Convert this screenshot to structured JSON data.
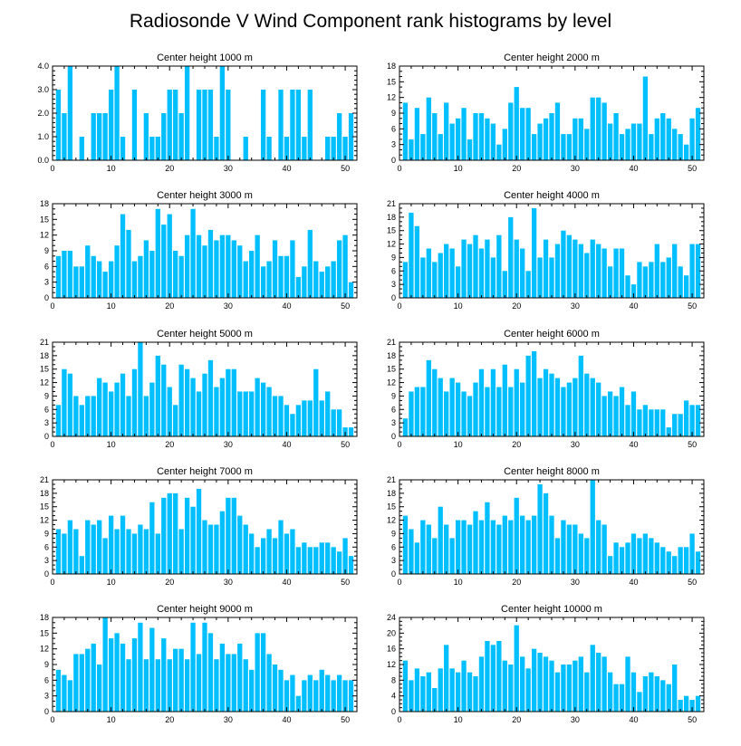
{
  "chart_data": {
    "title": "Radiosonde V Wind Component rank histograms by level",
    "bar_color": "#00bfff",
    "x_ticks": [
      "0",
      "10",
      "20",
      "30",
      "40",
      "50"
    ],
    "panels": [
      {
        "type": "bar",
        "title": "Center height 1000 m",
        "y_ticks": [
          "0.0",
          "1.0",
          "2.0",
          "3.0",
          "4.0"
        ],
        "ylim": [
          0,
          4
        ],
        "xlim": [
          0,
          52
        ],
        "x": [
          1,
          2,
          3,
          4,
          5,
          6,
          7,
          8,
          9,
          10,
          11,
          12,
          13,
          14,
          15,
          16,
          17,
          18,
          19,
          20,
          21,
          22,
          23,
          24,
          25,
          26,
          27,
          28,
          29,
          30,
          31,
          32,
          33,
          34,
          35,
          36,
          37,
          38,
          39,
          40,
          41,
          42,
          43,
          44,
          45,
          46,
          47,
          48,
          49,
          50,
          51
        ],
        "values": [
          3,
          2,
          4,
          0,
          1,
          0,
          2,
          2,
          2,
          3,
          4,
          1,
          0,
          3,
          0,
          2,
          1,
          1,
          2,
          3,
          3,
          2,
          4,
          0,
          3,
          3,
          3,
          1,
          4,
          3,
          0,
          0,
          1,
          0,
          0,
          3,
          1,
          0,
          3,
          1,
          3,
          3,
          1,
          3,
          0,
          0,
          1,
          1,
          2,
          1,
          2
        ]
      },
      {
        "type": "bar",
        "title": "Center height 2000 m",
        "y_ticks": [
          "0",
          "3",
          "6",
          "9",
          "12",
          "15",
          "18"
        ],
        "ylim": [
          0,
          18
        ],
        "xlim": [
          0,
          52
        ],
        "x": [
          1,
          2,
          3,
          4,
          5,
          6,
          7,
          8,
          9,
          10,
          11,
          12,
          13,
          14,
          15,
          16,
          17,
          18,
          19,
          20,
          21,
          22,
          23,
          24,
          25,
          26,
          27,
          28,
          29,
          30,
          31,
          32,
          33,
          34,
          35,
          36,
          37,
          38,
          39,
          40,
          41,
          42,
          43,
          44,
          45,
          46,
          47,
          48,
          49,
          50,
          51
        ],
        "values": [
          11,
          4,
          10,
          5,
          12,
          9,
          5,
          11,
          7,
          8,
          10,
          4,
          9,
          9,
          8,
          7,
          3,
          6,
          11,
          14,
          10,
          10,
          5,
          7,
          8,
          9,
          11,
          5,
          5,
          8,
          8,
          6,
          12,
          12,
          11,
          7,
          9,
          5,
          6,
          7,
          7,
          16,
          5,
          8,
          9,
          8,
          6,
          5,
          3,
          8,
          10
        ]
      },
      {
        "type": "bar",
        "title": "Center height 3000 m",
        "y_ticks": [
          "0",
          "3",
          "6",
          "9",
          "12",
          "15",
          "18"
        ],
        "ylim": [
          0,
          18
        ],
        "xlim": [
          0,
          52
        ],
        "x": [
          1,
          2,
          3,
          4,
          5,
          6,
          7,
          8,
          9,
          10,
          11,
          12,
          13,
          14,
          15,
          16,
          17,
          18,
          19,
          20,
          21,
          22,
          23,
          24,
          25,
          26,
          27,
          28,
          29,
          30,
          31,
          32,
          33,
          34,
          35,
          36,
          37,
          38,
          39,
          40,
          41,
          42,
          43,
          44,
          45,
          46,
          47,
          48,
          49,
          50,
          51
        ],
        "values": [
          8,
          9,
          9,
          6,
          6,
          10,
          8,
          7,
          5,
          7,
          10,
          16,
          13,
          7,
          8,
          11,
          9,
          17,
          14,
          16,
          9,
          8,
          12,
          17,
          12,
          10,
          13,
          11,
          12,
          12,
          11,
          10,
          7,
          9,
          12,
          6,
          7,
          11,
          8,
          8,
          11,
          4,
          6,
          13,
          7,
          5,
          6,
          7,
          11,
          12,
          3
        ]
      },
      {
        "type": "bar",
        "title": "Center height 4000 m",
        "y_ticks": [
          "0",
          "3",
          "6",
          "9",
          "12",
          "15",
          "18",
          "21"
        ],
        "ylim": [
          0,
          21
        ],
        "xlim": [
          0,
          52
        ],
        "x": [
          1,
          2,
          3,
          4,
          5,
          6,
          7,
          8,
          9,
          10,
          11,
          12,
          13,
          14,
          15,
          16,
          17,
          18,
          19,
          20,
          21,
          22,
          23,
          24,
          25,
          26,
          27,
          28,
          29,
          30,
          31,
          32,
          33,
          34,
          35,
          36,
          37,
          38,
          39,
          40,
          41,
          42,
          43,
          44,
          45,
          46,
          47,
          48,
          49,
          50,
          51
        ],
        "values": [
          8,
          19,
          16,
          9,
          11,
          8,
          10,
          12,
          11,
          7,
          13,
          12,
          14,
          11,
          13,
          9,
          14,
          6,
          18,
          13,
          11,
          6,
          20,
          9,
          13,
          9,
          12,
          15,
          14,
          13,
          12,
          10,
          13,
          12,
          11,
          7,
          11,
          11,
          5,
          3,
          8,
          7,
          8,
          12,
          8,
          9,
          12,
          7,
          5,
          12,
          12
        ]
      },
      {
        "type": "bar",
        "title": "Center height 5000 m",
        "y_ticks": [
          "0",
          "3",
          "6",
          "9",
          "12",
          "15",
          "18",
          "21"
        ],
        "ylim": [
          0,
          21
        ],
        "xlim": [
          0,
          52
        ],
        "x": [
          1,
          2,
          3,
          4,
          5,
          6,
          7,
          8,
          9,
          10,
          11,
          12,
          13,
          14,
          15,
          16,
          17,
          18,
          19,
          20,
          21,
          22,
          23,
          24,
          25,
          26,
          27,
          28,
          29,
          30,
          31,
          32,
          33,
          34,
          35,
          36,
          37,
          38,
          39,
          40,
          41,
          42,
          43,
          44,
          45,
          46,
          47,
          48,
          49,
          50,
          51
        ],
        "values": [
          7,
          15,
          14,
          9,
          7,
          9,
          9,
          13,
          12,
          10,
          12,
          14,
          9,
          15,
          21,
          9,
          12,
          18,
          16,
          11,
          7,
          16,
          15,
          13,
          10,
          14,
          17,
          11,
          13,
          15,
          15,
          10,
          10,
          10,
          13,
          12,
          11,
          9,
          9,
          7,
          5,
          7,
          8,
          8,
          15,
          8,
          10,
          6,
          6,
          2,
          2
        ]
      },
      {
        "type": "bar",
        "title": "Center height 6000 m",
        "y_ticks": [
          "0",
          "3",
          "6",
          "9",
          "12",
          "15",
          "18",
          "21"
        ],
        "ylim": [
          0,
          21
        ],
        "xlim": [
          0,
          52
        ],
        "x": [
          1,
          2,
          3,
          4,
          5,
          6,
          7,
          8,
          9,
          10,
          11,
          12,
          13,
          14,
          15,
          16,
          17,
          18,
          19,
          20,
          21,
          22,
          23,
          24,
          25,
          26,
          27,
          28,
          29,
          30,
          31,
          32,
          33,
          34,
          35,
          36,
          37,
          38,
          39,
          40,
          41,
          42,
          43,
          44,
          45,
          46,
          47,
          48,
          49,
          50,
          51
        ],
        "values": [
          4,
          10,
          11,
          11,
          17,
          15,
          13,
          10,
          13,
          12,
          10,
          9,
          12,
          15,
          11,
          15,
          11,
          16,
          11,
          15,
          12,
          18,
          19,
          13,
          15,
          14,
          13,
          11,
          12,
          13,
          18,
          14,
          13,
          12,
          9,
          10,
          9,
          11,
          7,
          10,
          6,
          7,
          6,
          6,
          6,
          2,
          5,
          5,
          8,
          7,
          7
        ]
      },
      {
        "type": "bar",
        "title": "Center height 7000 m",
        "y_ticks": [
          "0",
          "3",
          "6",
          "9",
          "12",
          "15",
          "18",
          "21"
        ],
        "ylim": [
          0,
          21
        ],
        "xlim": [
          0,
          52
        ],
        "x": [
          1,
          2,
          3,
          4,
          5,
          6,
          7,
          8,
          9,
          10,
          11,
          12,
          13,
          14,
          15,
          16,
          17,
          18,
          19,
          20,
          21,
          22,
          23,
          24,
          25,
          26,
          27,
          28,
          29,
          30,
          31,
          32,
          33,
          34,
          35,
          36,
          37,
          38,
          39,
          40,
          41,
          42,
          43,
          44,
          45,
          46,
          47,
          48,
          49,
          50,
          51
        ],
        "values": [
          10,
          9,
          12,
          10,
          4,
          12,
          11,
          12,
          8,
          13,
          10,
          13,
          10,
          9,
          11,
          10,
          16,
          9,
          17,
          18,
          18,
          10,
          17,
          15,
          19,
          12,
          11,
          11,
          14,
          17,
          17,
          13,
          11,
          9,
          6,
          8,
          10,
          8,
          12,
          9,
          10,
          6,
          7,
          6,
          6,
          7,
          7,
          6,
          5,
          8,
          4
        ]
      },
      {
        "type": "bar",
        "title": "Center height 8000 m",
        "y_ticks": [
          "0",
          "3",
          "6",
          "9",
          "12",
          "15",
          "18",
          "21"
        ],
        "ylim": [
          0,
          21
        ],
        "xlim": [
          0,
          52
        ],
        "x": [
          1,
          2,
          3,
          4,
          5,
          6,
          7,
          8,
          9,
          10,
          11,
          12,
          13,
          14,
          15,
          16,
          17,
          18,
          19,
          20,
          21,
          22,
          23,
          24,
          25,
          26,
          27,
          28,
          29,
          30,
          31,
          32,
          33,
          34,
          35,
          36,
          37,
          38,
          39,
          40,
          41,
          42,
          43,
          44,
          45,
          46,
          47,
          48,
          49,
          50,
          51
        ],
        "values": [
          13,
          10,
          7,
          12,
          11,
          8,
          15,
          11,
          8,
          12,
          12,
          11,
          14,
          12,
          16,
          12,
          11,
          13,
          12,
          17,
          13,
          12,
          13,
          20,
          18,
          13,
          8,
          12,
          11,
          11,
          9,
          8,
          21,
          12,
          11,
          4,
          7,
          6,
          7,
          9,
          8,
          9,
          8,
          7,
          6,
          5,
          4,
          6,
          6,
          9,
          5
        ]
      },
      {
        "type": "bar",
        "title": "Center height 9000 m",
        "y_ticks": [
          "0",
          "3",
          "6",
          "9",
          "12",
          "15",
          "18"
        ],
        "ylim": [
          0,
          18
        ],
        "xlim": [
          0,
          52
        ],
        "x": [
          1,
          2,
          3,
          4,
          5,
          6,
          7,
          8,
          9,
          10,
          11,
          12,
          13,
          14,
          15,
          16,
          17,
          18,
          19,
          20,
          21,
          22,
          23,
          24,
          25,
          26,
          27,
          28,
          29,
          30,
          31,
          32,
          33,
          34,
          35,
          36,
          37,
          38,
          39,
          40,
          41,
          42,
          43,
          44,
          45,
          46,
          47,
          48,
          49,
          50,
          51
        ],
        "values": [
          8,
          7,
          6,
          11,
          11,
          12,
          13,
          9,
          18,
          14,
          15,
          13,
          10,
          14,
          17,
          10,
          16,
          10,
          14,
          10,
          12,
          12,
          10,
          17,
          11,
          17,
          15,
          10,
          13,
          11,
          11,
          13,
          10,
          8,
          15,
          15,
          11,
          9,
          8,
          6,
          7,
          3,
          6,
          7,
          6,
          8,
          7,
          6,
          7,
          6,
          6
        ]
      },
      {
        "type": "bar",
        "title": "Center height 10000 m",
        "y_ticks": [
          "0",
          "4",
          "8",
          "12",
          "16",
          "20",
          "24"
        ],
        "ylim": [
          0,
          24
        ],
        "xlim": [
          0,
          52
        ],
        "x": [
          1,
          2,
          3,
          4,
          5,
          6,
          7,
          8,
          9,
          10,
          11,
          12,
          13,
          14,
          15,
          16,
          17,
          18,
          19,
          20,
          21,
          22,
          23,
          24,
          25,
          26,
          27,
          28,
          29,
          30,
          31,
          32,
          33,
          34,
          35,
          36,
          37,
          38,
          39,
          40,
          41,
          42,
          43,
          44,
          45,
          46,
          47,
          48,
          49,
          50,
          51
        ],
        "values": [
          13,
          8,
          11,
          9,
          10,
          6,
          11,
          17,
          11,
          10,
          13,
          10,
          9,
          14,
          18,
          17,
          18,
          13,
          12,
          22,
          14,
          11,
          16,
          15,
          14,
          13,
          10,
          12,
          12,
          13,
          14,
          10,
          17,
          15,
          14,
          10,
          7,
          7,
          14,
          10,
          5,
          9,
          10,
          9,
          8,
          7,
          12,
          3,
          4,
          3,
          4
        ]
      }
    ]
  }
}
